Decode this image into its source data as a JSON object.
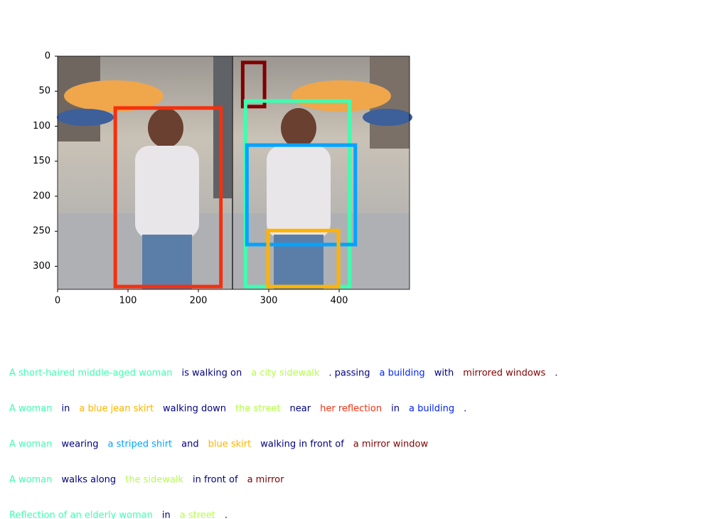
{
  "figure": {
    "xlim": [
      0,
      500
    ],
    "ylim": [
      333,
      0
    ],
    "xticks": [
      0,
      100,
      200,
      300,
      400
    ],
    "yticks": [
      0,
      50,
      100,
      150,
      200,
      250,
      300
    ],
    "boxes": [
      {
        "x0": 82,
        "y0": 74,
        "x1": 232,
        "y1": 329,
        "color": "#f5300e"
      },
      {
        "x0": 263,
        "y0": 9,
        "x1": 294,
        "y1": 72,
        "color": "#800000"
      },
      {
        "x0": 267,
        "y0": 64,
        "x1": 415,
        "y1": 329,
        "color": "#3dffb0"
      },
      {
        "x0": 269,
        "y0": 127,
        "x1": 423,
        "y1": 269,
        "color": "#00a4ff"
      },
      {
        "x0": 299,
        "y0": 249,
        "x1": 399,
        "y1": 329,
        "color": "#ffb300"
      }
    ]
  },
  "captions": [
    [
      {
        "text": "A short-haired middle-aged woman",
        "color": "#3dffb0"
      },
      {
        "text": "is walking on",
        "color": "#000080"
      },
      {
        "text": "a city sidewalk",
        "color": "#b4ff48"
      },
      {
        "text": ". passing",
        "color": "#000080"
      },
      {
        "text": "a building",
        "color": "#0024ff"
      },
      {
        "text": "with",
        "color": "#000080"
      },
      {
        "text": "mirrored windows",
        "color": "#800000"
      },
      {
        "text": ".",
        "color": "#000080"
      }
    ],
    [
      {
        "text": "A woman",
        "color": "#3dffb0"
      },
      {
        "text": "in",
        "color": "#000080"
      },
      {
        "text": "a blue jean skirt",
        "color": "#ffb300"
      },
      {
        "text": "walking down",
        "color": "#000080"
      },
      {
        "text": "the street",
        "color": "#b4ff48"
      },
      {
        "text": "near",
        "color": "#000080"
      },
      {
        "text": "her reflection",
        "color": "#f5300e"
      },
      {
        "text": "in",
        "color": "#000080"
      },
      {
        "text": "a building",
        "color": "#0024ff"
      },
      {
        "text": ".",
        "color": "#000080"
      }
    ],
    [
      {
        "text": "A woman",
        "color": "#3dffb0"
      },
      {
        "text": "wearing",
        "color": "#000080"
      },
      {
        "text": "a striped shirt",
        "color": "#00a4ff"
      },
      {
        "text": "and",
        "color": "#000080"
      },
      {
        "text": "blue skirt",
        "color": "#ffb300"
      },
      {
        "text": "walking in front of",
        "color": "#000080"
      },
      {
        "text": "a mirror window",
        "color": "#800000"
      }
    ],
    [
      {
        "text": "A woman",
        "color": "#3dffb0"
      },
      {
        "text": "walks along",
        "color": "#000080"
      },
      {
        "text": "the sidewalk",
        "color": "#b4ff48"
      },
      {
        "text": "in front of",
        "color": "#000080"
      },
      {
        "text": "a mirror",
        "color": "#800000"
      }
    ],
    [
      {
        "text": "Reflection of an elderly woman",
        "color": "#3dffb0"
      },
      {
        "text": "in",
        "color": "#000080"
      },
      {
        "text": "a street",
        "color": "#b4ff48"
      },
      {
        "text": ".",
        "color": "#000080"
      }
    ]
  ]
}
